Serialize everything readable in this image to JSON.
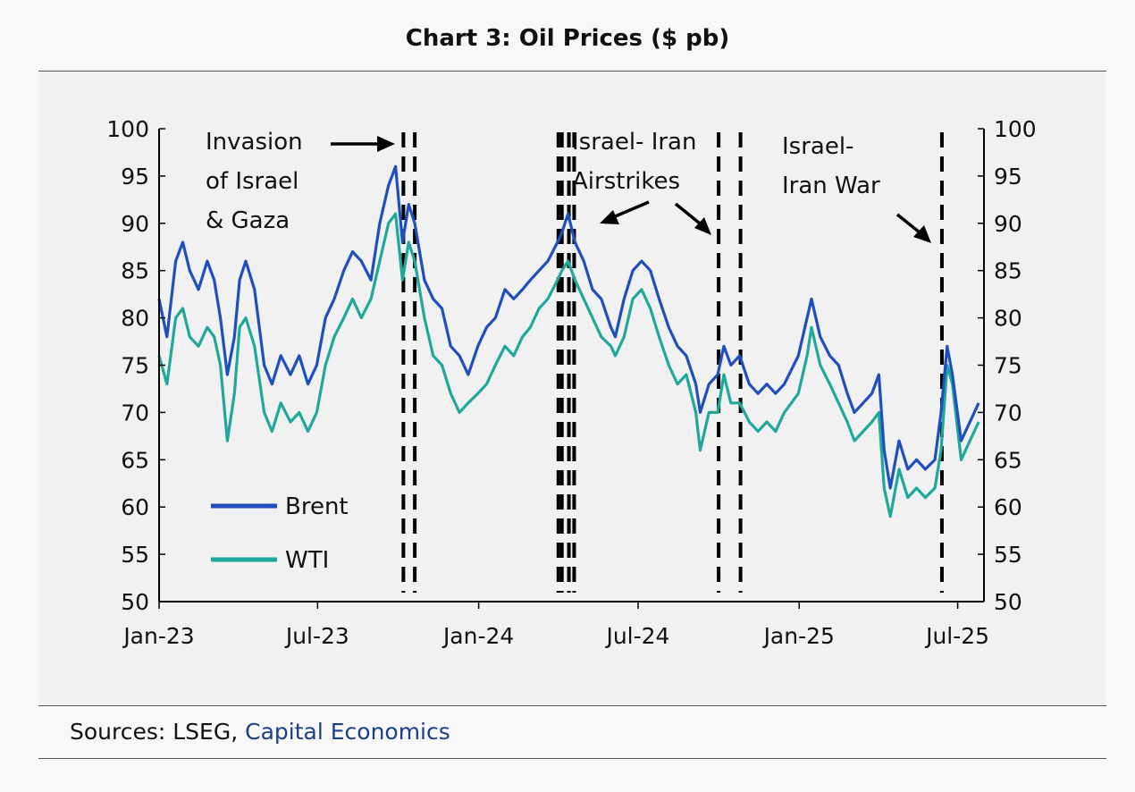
{
  "title": "Chart 3: Oil Prices ($ pb)",
  "sources": {
    "prefix": "Sources: LSEG, ",
    "link": "Capital Economics"
  },
  "colors": {
    "brent": "#1f4fbf",
    "wti": "#20a89a",
    "source_link": "#1b3f8b"
  },
  "chart_data": {
    "type": "line",
    "ylim": [
      50,
      100
    ],
    "yticks": [
      "50",
      "55",
      "60",
      "65",
      "70",
      "75",
      "80",
      "85",
      "90",
      "95",
      "100"
    ],
    "xlim": [
      "2023-01-01",
      "2025-07-31"
    ],
    "xticks": [
      {
        "label": "Jan-23",
        "date": "2023-01-01"
      },
      {
        "label": "Jul-23",
        "date": "2023-07-01"
      },
      {
        "label": "Jan-24",
        "date": "2024-01-01"
      },
      {
        "label": "Jul-24",
        "date": "2024-07-01"
      },
      {
        "label": "Jan-25",
        "date": "2025-01-01"
      },
      {
        "label": "Jul-25",
        "date": "2025-07-01"
      }
    ],
    "legend": {
      "position": "bottom-left"
    },
    "series": [
      {
        "name": "Brent",
        "x": [
          "2023-01-01",
          "2023-01-10",
          "2023-01-20",
          "2023-01-28",
          "2023-02-05",
          "2023-02-15",
          "2023-02-25",
          "2023-03-05",
          "2023-03-12",
          "2023-03-20",
          "2023-03-28",
          "2023-04-03",
          "2023-04-10",
          "2023-04-20",
          "2023-05-01",
          "2023-05-10",
          "2023-05-20",
          "2023-05-31",
          "2023-06-10",
          "2023-06-20",
          "2023-06-30",
          "2023-07-10",
          "2023-07-20",
          "2023-07-31",
          "2023-08-10",
          "2023-08-20",
          "2023-08-31",
          "2023-09-10",
          "2023-09-20",
          "2023-09-28",
          "2023-10-06",
          "2023-10-13",
          "2023-10-20",
          "2023-10-31",
          "2023-11-10",
          "2023-11-20",
          "2023-11-30",
          "2023-12-10",
          "2023-12-20",
          "2023-12-31",
          "2024-01-10",
          "2024-01-20",
          "2024-01-31",
          "2024-02-10",
          "2024-02-20",
          "2024-02-29",
          "2024-03-10",
          "2024-03-20",
          "2024-03-31",
          "2024-04-05",
          "2024-04-12",
          "2024-04-20",
          "2024-04-30",
          "2024-05-10",
          "2024-05-20",
          "2024-05-31",
          "2024-06-05",
          "2024-06-15",
          "2024-06-25",
          "2024-07-05",
          "2024-07-15",
          "2024-07-25",
          "2024-08-05",
          "2024-08-15",
          "2024-08-25",
          "2024-09-05",
          "2024-09-10",
          "2024-09-20",
          "2024-09-30",
          "2024-10-07",
          "2024-10-15",
          "2024-10-25",
          "2024-11-05",
          "2024-11-15",
          "2024-11-25",
          "2024-12-05",
          "2024-12-15",
          "2024-12-31",
          "2025-01-10",
          "2025-01-15",
          "2025-01-25",
          "2025-02-05",
          "2025-02-15",
          "2025-02-25",
          "2025-03-05",
          "2025-03-15",
          "2025-03-25",
          "2025-04-02",
          "2025-04-08",
          "2025-04-15",
          "2025-04-25",
          "2025-05-05",
          "2025-05-15",
          "2025-05-25",
          "2025-06-05",
          "2025-06-12",
          "2025-06-19",
          "2025-06-25",
          "2025-07-05",
          "2025-07-15",
          "2025-07-25"
        ],
        "values": [
          82,
          78,
          86,
          88,
          85,
          83,
          86,
          84,
          80,
          74,
          78,
          84,
          86,
          83,
          75,
          73,
          76,
          74,
          76,
          73,
          75,
          80,
          82,
          85,
          87,
          86,
          84,
          90,
          94,
          96,
          88,
          92,
          90,
          84,
          82,
          81,
          77,
          76,
          74,
          77,
          79,
          80,
          83,
          82,
          83,
          84,
          85,
          86,
          88,
          89,
          91,
          88,
          86,
          83,
          82,
          79,
          78,
          82,
          85,
          86,
          85,
          82,
          79,
          77,
          76,
          73,
          70,
          73,
          74,
          77,
          75,
          76,
          73,
          72,
          73,
          72,
          73,
          76,
          80,
          82,
          78,
          76,
          75,
          72,
          70,
          71,
          72,
          74,
          66,
          62,
          67,
          64,
          65,
          64,
          65,
          70,
          77,
          74,
          67,
          69,
          71
        ]
      },
      {
        "name": "WTI",
        "x": [
          "2023-01-01",
          "2023-01-10",
          "2023-01-20",
          "2023-01-28",
          "2023-02-05",
          "2023-02-15",
          "2023-02-25",
          "2023-03-05",
          "2023-03-12",
          "2023-03-20",
          "2023-03-28",
          "2023-04-03",
          "2023-04-10",
          "2023-04-20",
          "2023-05-01",
          "2023-05-10",
          "2023-05-20",
          "2023-05-31",
          "2023-06-10",
          "2023-06-20",
          "2023-06-30",
          "2023-07-10",
          "2023-07-20",
          "2023-07-31",
          "2023-08-10",
          "2023-08-20",
          "2023-08-31",
          "2023-09-10",
          "2023-09-20",
          "2023-09-28",
          "2023-10-06",
          "2023-10-13",
          "2023-10-20",
          "2023-10-31",
          "2023-11-10",
          "2023-11-20",
          "2023-11-30",
          "2023-12-10",
          "2023-12-20",
          "2023-12-31",
          "2024-01-10",
          "2024-01-20",
          "2024-01-31",
          "2024-02-10",
          "2024-02-20",
          "2024-02-29",
          "2024-03-10",
          "2024-03-20",
          "2024-03-31",
          "2024-04-05",
          "2024-04-12",
          "2024-04-20",
          "2024-04-30",
          "2024-05-10",
          "2024-05-20",
          "2024-05-31",
          "2024-06-05",
          "2024-06-15",
          "2024-06-25",
          "2024-07-05",
          "2024-07-15",
          "2024-07-25",
          "2024-08-05",
          "2024-08-15",
          "2024-08-25",
          "2024-09-05",
          "2024-09-10",
          "2024-09-20",
          "2024-09-30",
          "2024-10-07",
          "2024-10-15",
          "2024-10-25",
          "2024-11-05",
          "2024-11-15",
          "2024-11-25",
          "2024-12-05",
          "2024-12-15",
          "2024-12-31",
          "2025-01-10",
          "2025-01-15",
          "2025-01-25",
          "2025-02-05",
          "2025-02-15",
          "2025-02-25",
          "2025-03-05",
          "2025-03-15",
          "2025-03-25",
          "2025-04-02",
          "2025-04-08",
          "2025-04-15",
          "2025-04-25",
          "2025-05-05",
          "2025-05-15",
          "2025-05-25",
          "2025-06-05",
          "2025-06-12",
          "2025-06-19",
          "2025-06-25",
          "2025-07-05",
          "2025-07-15",
          "2025-07-25"
        ],
        "values": [
          76,
          73,
          80,
          81,
          78,
          77,
          79,
          78,
          75,
          67,
          72,
          79,
          80,
          77,
          70,
          68,
          71,
          69,
          70,
          68,
          70,
          75,
          78,
          80,
          82,
          80,
          82,
          86,
          90,
          91,
          84,
          88,
          86,
          80,
          76,
          75,
          72,
          70,
          71,
          72,
          73,
          75,
          77,
          76,
          78,
          79,
          81,
          82,
          84,
          85,
          86,
          84,
          82,
          80,
          78,
          77,
          76,
          78,
          82,
          83,
          81,
          78,
          75,
          73,
          74,
          70,
          66,
          70,
          70,
          74,
          71,
          71,
          69,
          68,
          69,
          68,
          70,
          72,
          76,
          79,
          75,
          73,
          71,
          69,
          67,
          68,
          69,
          70,
          62,
          59,
          64,
          61,
          62,
          61,
          62,
          66,
          75,
          73,
          65,
          67,
          69
        ]
      }
    ],
    "event_markers": [
      {
        "date": "2023-10-07"
      },
      {
        "date": "2023-10-20"
      },
      {
        "date": "2024-04-01"
      },
      {
        "date": "2024-04-05"
      },
      {
        "date": "2024-04-13"
      },
      {
        "date": "2024-04-19"
      },
      {
        "date": "2024-10-01"
      },
      {
        "date": "2024-10-26"
      },
      {
        "date": "2025-06-13"
      }
    ],
    "annotations": [
      {
        "lines": [
          "Invasion",
          "of Israel",
          "& Gaza"
        ]
      },
      {
        "lines": [
          "Israel- Iran",
          "Airstrikes"
        ]
      },
      {
        "lines": [
          "Israel-",
          "Iran War"
        ]
      }
    ]
  }
}
